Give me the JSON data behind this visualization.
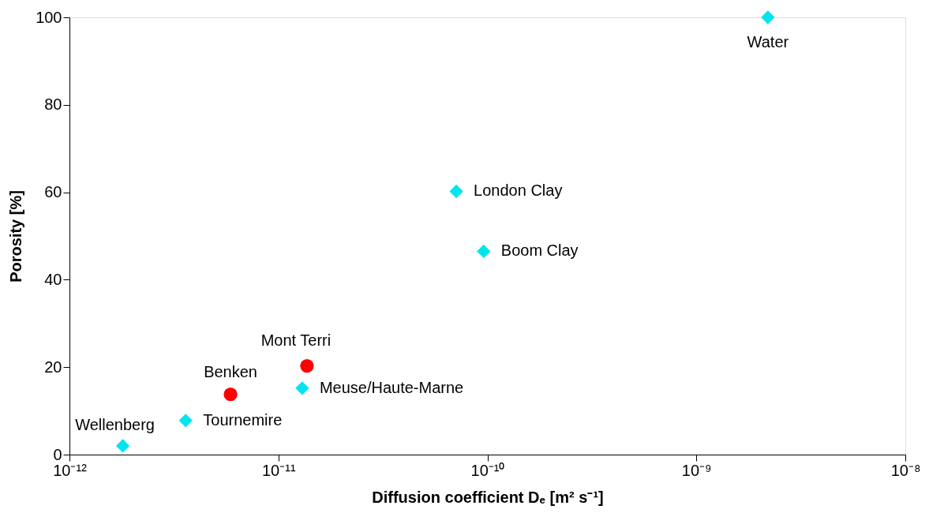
{
  "chart_data": {
    "type": "scatter",
    "xlabel": "Diffusion coefficient Dₑ [m² s⁻¹]",
    "ylabel": "Porosity [%]",
    "log": "x",
    "xlim": [
      1e-12,
      1e-08
    ],
    "xticks": [
      {
        "value": 1e-12,
        "label": "10⁻¹²"
      },
      {
        "value": 1e-11,
        "label": "10⁻¹¹"
      },
      {
        "value": 1e-10,
        "label": "10⁻¹⁰"
      },
      {
        "value": 1e-09,
        "label": "10⁻⁹"
      },
      {
        "value": 1e-08,
        "label": "10⁻⁸"
      }
    ],
    "ylim": [
      0,
      100
    ],
    "yticks": [
      0,
      20,
      40,
      60,
      80,
      100
    ],
    "grid": false,
    "series": [
      {
        "color": "#00e5ee",
        "marker": "diamond",
        "x": [
          2.2e-09,
          7.1e-11,
          9.6e-11,
          1.3e-11,
          3.6e-12,
          1.8e-12
        ],
        "values": [
          100,
          60.2,
          46.5,
          15.2,
          7.8,
          2.0
        ]
      },
      {
        "color": "#ff0000",
        "marker": "circle",
        "x": [
          5.9e-12,
          1.37e-11
        ],
        "values": [
          13.8,
          20.3
        ]
      }
    ],
    "annotations": [
      {
        "text": "Water",
        "x": 2.2e-09,
        "y": 100
      },
      {
        "text": "London Clay",
        "x": 7.1e-11,
        "y": 60.2
      },
      {
        "text": "Boom Clay",
        "x": 9.6e-11,
        "y": 46.5
      },
      {
        "text": "Meuse/Haute-Marne",
        "x": 1.3e-11,
        "y": 15.2
      },
      {
        "text": "Tournemire",
        "x": 3.6e-12,
        "y": 7.8
      },
      {
        "text": "Wellenberg",
        "x": 1.8e-12,
        "y": 2.0
      },
      {
        "text": "Benken",
        "x": 5.9e-12,
        "y": 13.8
      },
      {
        "text": "Mont Terri",
        "x": 1.37e-11,
        "y": 20.3
      }
    ]
  }
}
